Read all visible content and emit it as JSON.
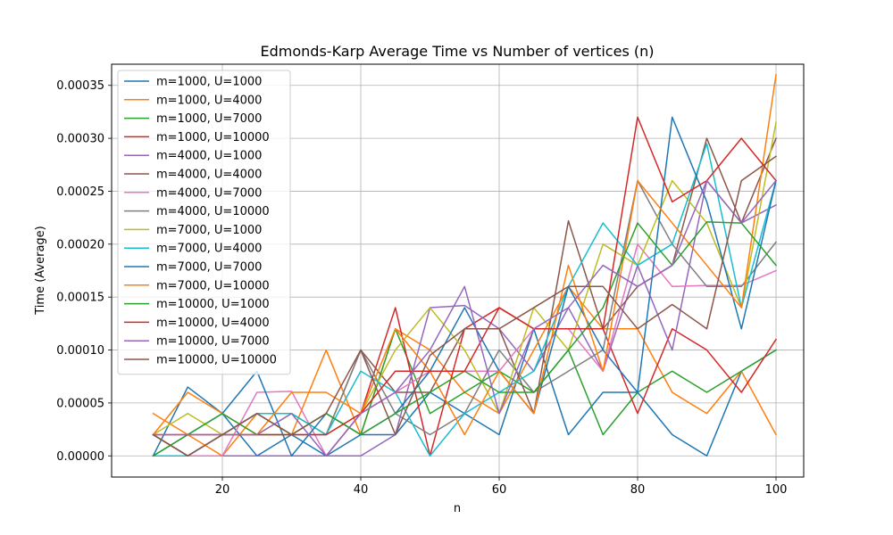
{
  "chart_data": {
    "type": "line",
    "title": "Edmonds-Karp Average Time vs Number of vertices (n)",
    "xlabel": "n",
    "ylabel": "Time (Average)",
    "xlim": [
      4,
      104
    ],
    "ylim": [
      -2e-05,
      0.00037
    ],
    "xticks": [
      20,
      40,
      60,
      80,
      100
    ],
    "yticks": [
      0.0,
      5e-05,
      0.0001,
      0.00015,
      0.0002,
      0.00025,
      0.0003,
      0.00035
    ],
    "ytick_labels": [
      "0.00000",
      "0.00005",
      "0.00010",
      "0.00015",
      "0.00020",
      "0.00025",
      "0.00030",
      "0.00035"
    ],
    "grid": true,
    "legend_position": "upper-left",
    "x": [
      10,
      15,
      20,
      25,
      30,
      35,
      40,
      45,
      50,
      55,
      60,
      65,
      70,
      75,
      80,
      85,
      90,
      95,
      100
    ],
    "series": [
      {
        "name": "m=1000, U=1000",
        "color": "#1f77b4",
        "values": [
          0.0,
          6.5e-05,
          4e-05,
          0.0,
          2e-05,
          0.0,
          2e-05,
          2e-05,
          6e-05,
          4e-05,
          2e-05,
          0.00012,
          2e-05,
          6e-05,
          6e-05,
          2e-05,
          0.0,
          8e-05,
          0.0001
        ]
      },
      {
        "name": "m=1000, U=4000",
        "color": "#ff7f0e",
        "values": [
          4e-05,
          2e-05,
          0.0,
          4e-05,
          2e-05,
          0.0001,
          2e-05,
          0.00012,
          0.0001,
          6e-05,
          4e-05,
          0.0001,
          0.00016,
          0.00012,
          0.00012,
          6e-05,
          4e-05,
          8e-05,
          2e-05
        ]
      },
      {
        "name": "m=1000, U=7000",
        "color": "#2ca02c",
        "values": [
          2e-05,
          0.0,
          2e-05,
          4e-05,
          2e-05,
          4e-05,
          2e-05,
          0.00012,
          4e-05,
          6e-05,
          8e-05,
          6e-05,
          0.0001,
          2e-05,
          6e-05,
          8e-05,
          6e-05,
          8e-05,
          0.0001
        ]
      },
      {
        "name": "m=1000, U=10000",
        "color": "#d62728",
        "values": [
          2e-05,
          0.0,
          0.0,
          0.0,
          0.0,
          0.0,
          4e-05,
          0.00014,
          0.0,
          0.00012,
          0.00014,
          0.00012,
          0.00012,
          0.00012,
          4e-05,
          0.00012,
          0.0001,
          6e-05,
          0.00011
        ]
      },
      {
        "name": "m=4000, U=1000",
        "color": "#9467bd",
        "values": [
          0.0,
          0.0,
          0.0,
          0.0,
          0.0,
          0.0,
          0.0,
          2e-05,
          0.00014,
          0.000142,
          0.00012,
          8e-05,
          0.00014,
          8e-05,
          0.00018,
          0.0001,
          0.00026,
          0.00022,
          0.000237
        ]
      },
      {
        "name": "m=4000, U=4000",
        "color": "#8c564b",
        "values": [
          2e-05,
          0.0,
          2e-05,
          4e-05,
          4e-05,
          2e-05,
          0.0001,
          6e-05,
          6e-05,
          0.00012,
          0.00012,
          4e-05,
          0.000222,
          0.00012,
          0.00016,
          0.00018,
          0.0003,
          0.00022,
          0.0003
        ]
      },
      {
        "name": "m=4000, U=7000",
        "color": "#e377c2",
        "values": [
          0.0,
          0.0,
          0.0,
          6e-05,
          6.1e-05,
          0.0,
          4e-05,
          6e-05,
          8e-05,
          8e-05,
          8e-05,
          0.00012,
          0.00012,
          8e-05,
          0.0002,
          0.00016,
          0.000161,
          0.000161,
          0.000175
        ]
      },
      {
        "name": "m=4000, U=10000",
        "color": "#7f7f7f",
        "values": [
          2e-05,
          0.0,
          2e-05,
          4e-05,
          2e-05,
          2e-05,
          0.0001,
          4e-05,
          2e-05,
          4e-05,
          0.0001,
          6e-05,
          8e-05,
          0.0001,
          0.00026,
          0.0002,
          0.00016,
          0.00016,
          0.000202
        ]
      },
      {
        "name": "m=7000, U=1000",
        "color": "#bcbd22",
        "values": [
          2e-05,
          4e-05,
          2e-05,
          2e-05,
          4e-05,
          2e-05,
          4e-05,
          0.0001,
          0.00014,
          0.0001,
          4e-05,
          0.00014,
          0.0001,
          0.0002,
          0.00018,
          0.00026,
          0.00022,
          0.00014,
          0.000315
        ]
      },
      {
        "name": "m=7000, U=4000",
        "color": "#17becf",
        "values": [
          0.0,
          0.0,
          2e-05,
          4e-05,
          4e-05,
          2e-05,
          8e-05,
          6e-05,
          0.0,
          4e-05,
          6e-05,
          8e-05,
          0.00016,
          0.00022,
          0.00018,
          0.0002,
          0.000295,
          0.00014,
          0.00026
        ]
      },
      {
        "name": "m=7000, U=7000",
        "color": "#1f77b4",
        "values": [
          0.0,
          2e-05,
          4e-05,
          8e-05,
          0.0,
          4e-05,
          2e-05,
          4e-05,
          8e-05,
          0.00014,
          8e-05,
          4e-05,
          0.00016,
          0.0001,
          6e-05,
          0.00032,
          0.00024,
          0.00012,
          0.00026
        ]
      },
      {
        "name": "m=7000, U=10000",
        "color": "#ff7f0e",
        "values": [
          2e-05,
          6e-05,
          4e-05,
          2e-05,
          6e-05,
          6e-05,
          4e-05,
          0.00012,
          8e-05,
          2e-05,
          8e-05,
          4e-05,
          0.00018,
          8e-05,
          0.00026,
          0.00022,
          0.00018,
          0.00014,
          0.00036
        ]
      },
      {
        "name": "m=10000, U=1000",
        "color": "#2ca02c",
        "values": [
          0.0,
          2e-05,
          4e-05,
          2e-05,
          2e-05,
          4e-05,
          2e-05,
          4e-05,
          6e-05,
          8e-05,
          6e-05,
          6e-05,
          0.0001,
          0.00014,
          0.00022,
          0.00018,
          0.000221,
          0.00022,
          0.00018
        ]
      },
      {
        "name": "m=10000, U=4000",
        "color": "#d62728",
        "values": [
          2e-05,
          2e-05,
          2e-05,
          2e-05,
          2e-05,
          2e-05,
          4e-05,
          8e-05,
          8e-05,
          8e-05,
          0.00014,
          0.00012,
          0.00012,
          0.00012,
          0.00032,
          0.00024,
          0.00026,
          0.0003,
          0.00026
        ]
      },
      {
        "name": "m=10000, U=7000",
        "color": "#9467bd",
        "values": [
          2e-05,
          2e-05,
          2e-05,
          2e-05,
          4e-05,
          0.0,
          4e-05,
          6e-05,
          0.0001,
          0.00016,
          4e-05,
          0.00012,
          0.00014,
          0.00018,
          0.00016,
          0.00018,
          0.00026,
          0.00022,
          0.00026
        ]
      },
      {
        "name": "m=10000, U=10000",
        "color": "#8c564b",
        "values": [
          2e-05,
          0.0,
          2e-05,
          4e-05,
          2e-05,
          4e-05,
          0.0001,
          2e-05,
          9.5e-05,
          0.00012,
          0.00012,
          0.00014,
          0.00016,
          0.00016,
          0.00012,
          0.000143,
          0.00012,
          0.00026,
          0.000283
        ]
      }
    ]
  }
}
